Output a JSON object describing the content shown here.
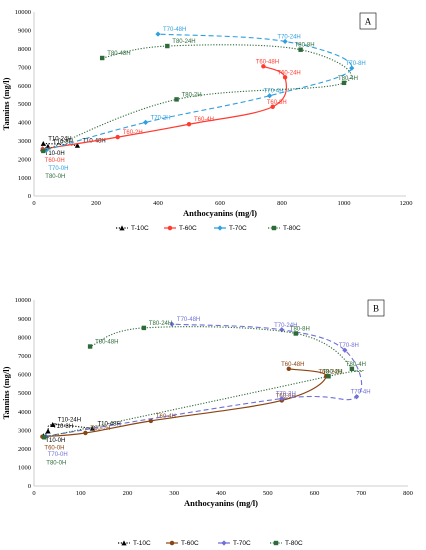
{
  "chart_data": [
    {
      "type": "scatter",
      "panel_label": "A",
      "xlabel": "Anthocyanins (mg/l)",
      "ylabel": "Tannins (mg/l)",
      "xlim": [
        0,
        1200
      ],
      "ylim": [
        0,
        10000
      ],
      "xticks": [
        0,
        200,
        400,
        600,
        800,
        1000,
        1200
      ],
      "yticks": [
        0,
        1000,
        2000,
        3000,
        4000,
        5000,
        6000,
        7000,
        8000,
        9000,
        10000
      ],
      "grid": false,
      "legend_position": "bottom",
      "series": [
        {
          "name": "T-10C",
          "color": "#000000",
          "marker": "triangle",
          "line": "dotted",
          "points": [
            {
              "label": "T10-0H",
              "x": 28,
              "y": 2560
            },
            {
              "label": "T10-8H",
              "x": 45,
              "y": 2700
            },
            {
              "label": "T10-24H",
              "x": 30,
              "y": 2850
            },
            {
              "label": "T10-48H",
              "x": 140,
              "y": 2750
            }
          ]
        },
        {
          "name": "T-60C",
          "color": "#ff3b30",
          "marker": "circle",
          "line": "solid",
          "points": [
            {
              "label": "T60-0H",
              "x": 28,
              "y": 2550
            },
            {
              "label": "T60-2H",
              "x": 270,
              "y": 3200
            },
            {
              "label": "T60-4H",
              "x": 500,
              "y": 3900
            },
            {
              "label": "T60-8H",
              "x": 770,
              "y": 4850
            },
            {
              "label": "T60-24H",
              "x": 810,
              "y": 6450
            },
            {
              "label": "T60-48H",
              "x": 740,
              "y": 7050
            }
          ]
        },
        {
          "name": "T-70C",
          "color": "#2e9fe0",
          "marker": "diamond",
          "line": "dashed",
          "points": [
            {
              "label": "T70-0H",
              "x": 40,
              "y": 2500
            },
            {
              "label": "T70-2H",
              "x": 360,
              "y": 4000
            },
            {
              "label": "T70-4H",
              "x": 760,
              "y": 5450
            },
            {
              "label": "T70-8H",
              "x": 1025,
              "y": 6950
            },
            {
              "label": "T70-24H",
              "x": 810,
              "y": 8400
            },
            {
              "label": "T70-48H",
              "x": 400,
              "y": 8800
            }
          ]
        },
        {
          "name": "T-80C",
          "color": "#2e6b3a",
          "marker": "square",
          "line": "dotted",
          "points": [
            {
              "label": "T80-0H",
              "x": 30,
              "y": 2450
            },
            {
              "label": "T80-2H",
              "x": 460,
              "y": 5250
            },
            {
              "label": "T80-4H",
              "x": 1000,
              "y": 6150
            },
            {
              "label": "T80-8H",
              "x": 860,
              "y": 7950
            },
            {
              "label": "T80-24H",
              "x": 430,
              "y": 8150
            },
            {
              "label": "T80-48H",
              "x": 220,
              "y": 7500
            }
          ]
        }
      ]
    },
    {
      "type": "scatter",
      "panel_label": "B",
      "xlabel": "Anthocyanins (mg/l)",
      "ylabel": "Tannins (mg/l)",
      "xlim": [
        0,
        800
      ],
      "ylim": [
        0,
        10000
      ],
      "xticks": [
        0,
        100,
        200,
        300,
        400,
        500,
        600,
        700,
        800
      ],
      "yticks": [
        0,
        1000,
        2000,
        3000,
        4000,
        5000,
        6000,
        7000,
        8000,
        9000,
        10000
      ],
      "grid": false,
      "legend_position": "bottom",
      "series": [
        {
          "name": "T-10C",
          "color": "#000000",
          "marker": "triangle",
          "line": "dotted",
          "points": [
            {
              "label": "T10-0H",
              "x": 20,
              "y": 2700
            },
            {
              "label": "T10-8H",
              "x": 30,
              "y": 2950
            },
            {
              "label": "T10-24H",
              "x": 40,
              "y": 3300
            },
            {
              "label": "T10-48H",
              "x": 125,
              "y": 3100
            }
          ]
        },
        {
          "name": "T-60C",
          "color": "#8b4513",
          "marker": "circle",
          "line": "solid",
          "points": [
            {
              "label": "T60-0H",
              "x": 18,
              "y": 2650
            },
            {
              "label": "T60-2H",
              "x": 110,
              "y": 2850
            },
            {
              "label": "T60-4H",
              "x": 250,
              "y": 3500
            },
            {
              "label": "T60-8H",
              "x": 530,
              "y": 4600
            },
            {
              "label": "T60-24H",
              "x": 625,
              "y": 5900
            },
            {
              "label": "T60-48H",
              "x": 545,
              "y": 6300
            }
          ]
        },
        {
          "name": "T-70C",
          "color": "#6f6fd8",
          "marker": "diamond",
          "line": "dashed",
          "points": [
            {
              "label": "T70-0H",
              "x": 25,
              "y": 2680
            },
            {
              "label": "T70-2H",
              "x": 530,
              "y": 4700
            },
            {
              "label": "T70-4H",
              "x": 690,
              "y": 4800
            },
            {
              "label": "T70-8H",
              "x": 665,
              "y": 7300
            },
            {
              "label": "T70-24H",
              "x": 530,
              "y": 8400
            },
            {
              "label": "T70-48H",
              "x": 295,
              "y": 8700
            }
          ]
        },
        {
          "name": "T-80C",
          "color": "#2e6b3a",
          "marker": "square",
          "line": "dotted",
          "points": [
            {
              "label": "T80-0H",
              "x": 22,
              "y": 2620
            },
            {
              "label": "T80-2H",
              "x": 630,
              "y": 5900
            },
            {
              "label": "T80-4H",
              "x": 680,
              "y": 6300
            },
            {
              "label": "T80-8H",
              "x": 560,
              "y": 8200
            },
            {
              "label": "T80-24H",
              "x": 235,
              "y": 8500
            },
            {
              "label": "T80-48H",
              "x": 120,
              "y": 7500
            }
          ]
        }
      ]
    }
  ]
}
